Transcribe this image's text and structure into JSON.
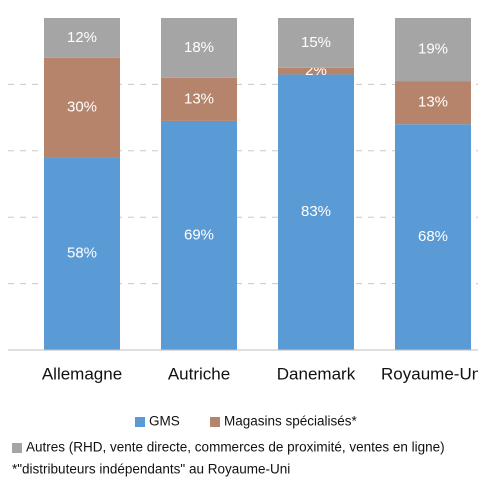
{
  "chart_data": {
    "type": "stacked_bar",
    "categories": [
      "Allemagne",
      "Autriche",
      "Danemark",
      "Royaume-Uni"
    ],
    "series": [
      {
        "name": "GMS",
        "color": "#5b9bd5",
        "values": [
          58,
          69,
          83,
          68
        ],
        "value_labels": [
          "58%",
          "69%",
          "83%",
          "68%"
        ]
      },
      {
        "name": "Magasins spécialisés*",
        "color": "#b5846b",
        "values": [
          30,
          13,
          2,
          13
        ],
        "value_labels": [
          "30%",
          "13%",
          "2%",
          "13%"
        ]
      },
      {
        "name": "Autres (RHD, vente directe, commerces de proximité, ventes en ligne)",
        "color": "#a5a5a5",
        "values": [
          12,
          18,
          15,
          19
        ],
        "value_labels": [
          "12%",
          "18%",
          "15%",
          "19%"
        ]
      }
    ],
    "ylim": [
      0,
      100
    ],
    "yticks": [
      20,
      40,
      60,
      80
    ],
    "grid": true,
    "annotations": [
      "*\"distributeurs indépendants\" au Royaume-Uni"
    ]
  }
}
